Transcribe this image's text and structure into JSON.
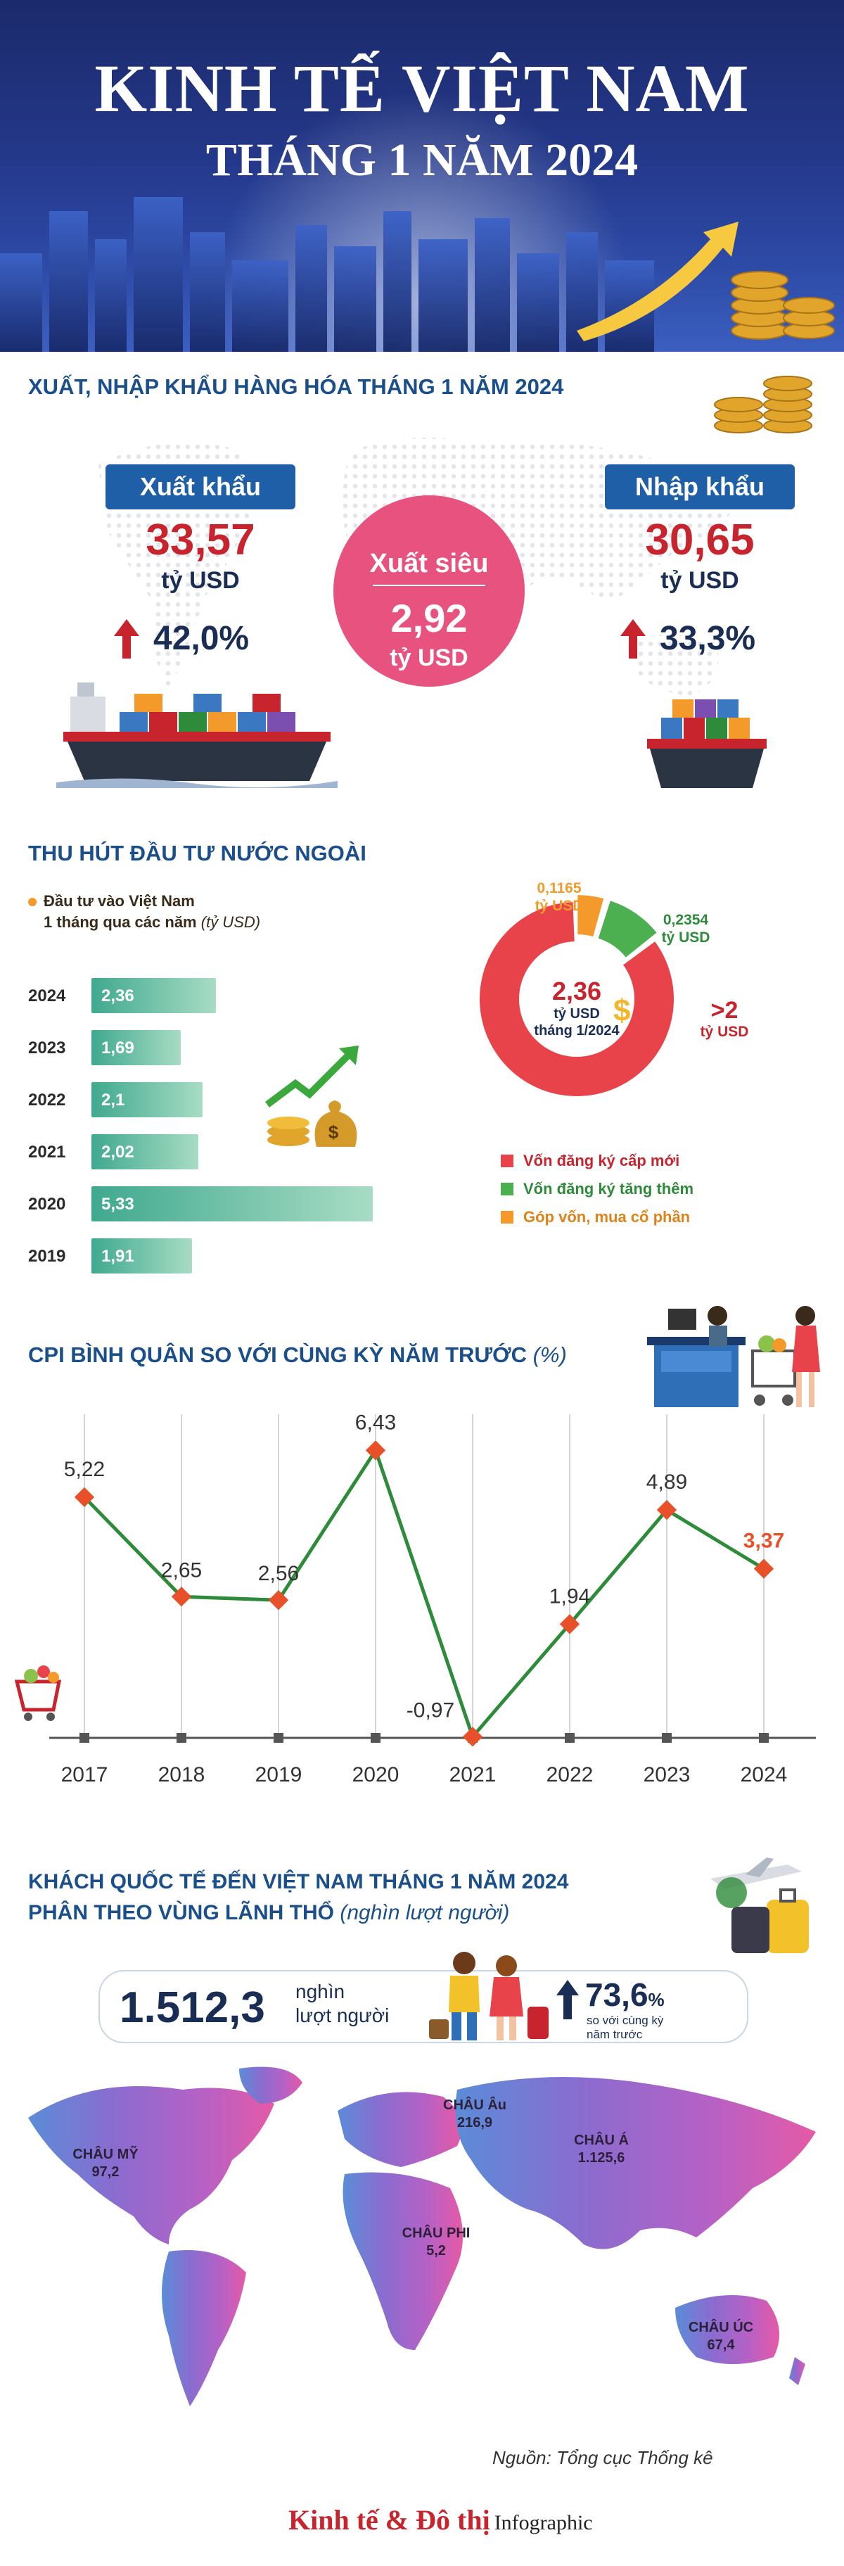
{
  "header": {
    "title_line1": "KINH TẾ VIỆT NAM",
    "title_line2": "THÁNG 1  NĂM 2024"
  },
  "trade": {
    "title": "XUẤT, NHẬP KHẨU HÀNG HÓA THÁNG 1 NĂM 2024",
    "export": {
      "label": "Xuất khẩu",
      "value": "33,57",
      "unit": "tỷ USD",
      "growth": "42,0%"
    },
    "import": {
      "label": "Nhập khẩu",
      "value": "30,65",
      "unit": "tỷ USD",
      "growth": "33,3%"
    },
    "surplus": {
      "label": "Xuất siêu",
      "value": "2,92",
      "unit": "tỷ USD"
    }
  },
  "fdi": {
    "title": "THU HÚT ĐẦU TƯ NƯỚC NGOÀI",
    "legend_line1": "Đầu tư vào Việt Nam",
    "legend_line2": "1 tháng qua các năm",
    "legend_unit": "(tỷ USD)",
    "donut_center_value": "2,36",
    "donut_center_unit": "tỷ USD",
    "donut_center_period": "tháng 1/2024",
    "label_orange_value": "0,1165",
    "label_orange_unit": "tỷ USD",
    "label_green_value": "0,2354",
    "label_green_unit": "tỷ USD",
    "label_red_value": ">2",
    "label_red_unit": "tỷ USD",
    "donut_legend": [
      "Vốn đăng ký cấp mới",
      "Vốn đăng ký tăng thêm",
      "Góp vốn, mua cổ phần"
    ]
  },
  "cpi": {
    "title": "CPI BÌNH QUÂN SO VỚI CÙNG KỲ NĂM TRƯỚC",
    "title_unit": "(%)"
  },
  "tourism": {
    "title_line1": "KHÁCH QUỐC TẾ ĐẾN VIỆT NAM  THÁNG 1 NĂM 2024",
    "title_line2": "PHÂN THEO VÙNG LÃNH THỔ",
    "title_unit": "(nghìn lượt người)",
    "total_value": "1.512,3",
    "total_unit_line1": "nghìn",
    "total_unit_line2": "lượt người",
    "growth_value": "73,6",
    "growth_pct": "%",
    "growth_note_line1": "so với cùng kỳ",
    "growth_note_line2": "năm trước"
  },
  "footer": {
    "source": "Nguồn: Tổng cục Thống kê",
    "brand": "Kinh tế & Đô thị",
    "brand_suffix": "Infographic"
  },
  "colors": {
    "navy": "#1a4f8c",
    "red": "#c8242e",
    "green": "#2e8b3a",
    "orange": "#f39a2a",
    "pink": "#e8527f",
    "teal": "#3fa98f"
  },
  "chart_data": [
    {
      "type": "bar",
      "categories": [
        "2024",
        "2023",
        "2022",
        "2021",
        "2020",
        "2019"
      ],
      "values": [
        2.36,
        1.69,
        2.1,
        2.02,
        5.33,
        1.91
      ],
      "value_labels": [
        "2,36",
        "1,69",
        "2,1",
        "2,02",
        "5,33",
        "1,91"
      ],
      "orientation": "horizontal"
    },
    {
      "type": "pie",
      "labels": [
        "Vốn đăng ký cấp mới",
        "Vốn đăng ký tăng thêm",
        "Góp vốn, mua cổ phần"
      ],
      "values": [
        2.0081,
        0.2354,
        0.1165
      ],
      "colors": [
        "#e8434a",
        "#4caf50",
        "#f39a2a"
      ]
    },
    {
      "type": "line",
      "x": [
        "2017",
        "2018",
        "2019",
        "2020",
        "2021",
        "2022",
        "2023",
        "2024"
      ],
      "values": [
        5.22,
        2.65,
        2.56,
        6.43,
        -0.97,
        1.94,
        4.89,
        3.37
      ],
      "value_labels": [
        "5,22",
        "2,65",
        "2,56",
        "6,43",
        "-0,97",
        "1,94",
        "4,89",
        "3,37"
      ],
      "ylim": [
        -1,
        7
      ],
      "color": "#2e8b3a",
      "highlight_last": "#e8502a"
    },
    {
      "type": "table",
      "regions": [
        {
          "name": "CHÂU MỸ",
          "value": "97,2"
        },
        {
          "name": "CHÂU Âu",
          "value": "216,9"
        },
        {
          "name": "CHÂU Á",
          "value": "1.125,6"
        },
        {
          "name": "CHÂU PHI",
          "value": "5,2"
        },
        {
          "name": "CHÂU ÚC",
          "value": "67,4"
        }
      ]
    }
  ]
}
